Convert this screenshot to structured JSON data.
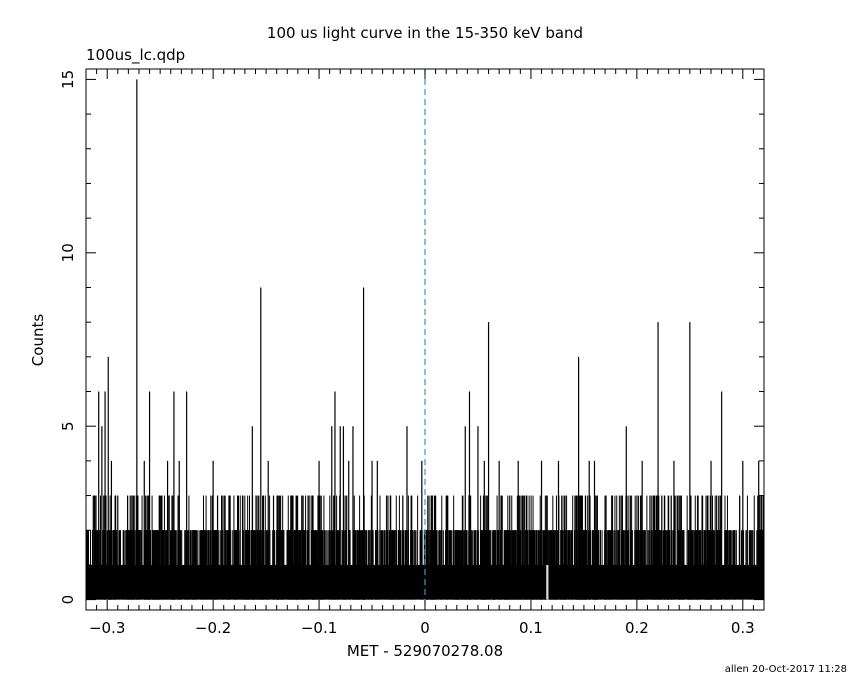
{
  "chart_data": {
    "type": "bar",
    "title": "100 us light curve in the 15-350 keV band",
    "file_label": "100us_lc.qdp",
    "xlabel": "MET - 529070278.08",
    "ylabel": "Counts",
    "footer": "allen 20-Oct-2017 11:28",
    "xlim": [
      -0.32,
      0.32
    ],
    "ylim": [
      -0.3,
      15.3
    ],
    "bin_width": 0.0001,
    "x_ticks": [
      -0.3,
      -0.2,
      -0.1,
      0,
      0.1,
      0.2,
      0.3
    ],
    "x_tick_labels": [
      "−0.3",
      "−0.2",
      "−0.1",
      "0",
      "0.1",
      "0.2",
      "0.3"
    ],
    "y_ticks": [
      0,
      5,
      10,
      15
    ],
    "y_tick_labels": [
      "0",
      "5",
      "10",
      "15"
    ],
    "trigger_line": {
      "x": 0,
      "style": "dashed",
      "color": "#2a9fc4"
    },
    "series": [
      {
        "background_level": 1,
        "peaks": [
          {
            "x": -0.308,
            "y": 6
          },
          {
            "x": -0.305,
            "y": 5
          },
          {
            "x": -0.302,
            "y": 6
          },
          {
            "x": -0.299,
            "y": 7
          },
          {
            "x": -0.296,
            "y": 4
          },
          {
            "x": -0.29,
            "y": 3
          },
          {
            "x": -0.272,
            "y": 15
          },
          {
            "x": -0.265,
            "y": 4
          },
          {
            "x": -0.26,
            "y": 6
          },
          {
            "x": -0.25,
            "y": 3
          },
          {
            "x": -0.243,
            "y": 4
          },
          {
            "x": -0.237,
            "y": 6
          },
          {
            "x": -0.232,
            "y": 4
          },
          {
            "x": -0.225,
            "y": 6
          },
          {
            "x": -0.2,
            "y": 4
          },
          {
            "x": -0.185,
            "y": 3
          },
          {
            "x": -0.163,
            "y": 5
          },
          {
            "x": -0.155,
            "y": 9
          },
          {
            "x": -0.148,
            "y": 4
          },
          {
            "x": -0.143,
            "y": 3
          },
          {
            "x": -0.125,
            "y": 3
          },
          {
            "x": -0.1,
            "y": 4
          },
          {
            "x": -0.098,
            "y": 3
          },
          {
            "x": -0.088,
            "y": 5
          },
          {
            "x": -0.085,
            "y": 6
          },
          {
            "x": -0.08,
            "y": 5
          },
          {
            "x": -0.077,
            "y": 5
          },
          {
            "x": -0.072,
            "y": 4
          },
          {
            "x": -0.068,
            "y": 5
          },
          {
            "x": -0.058,
            "y": 9
          },
          {
            "x": -0.05,
            "y": 4
          },
          {
            "x": -0.045,
            "y": 4
          },
          {
            "x": -0.035,
            "y": 3
          },
          {
            "x": -0.017,
            "y": 5
          },
          {
            "x": -0.003,
            "y": 4
          },
          {
            "x": 0.01,
            "y": 3
          },
          {
            "x": 0.038,
            "y": 5
          },
          {
            "x": 0.042,
            "y": 6
          },
          {
            "x": 0.05,
            "y": 5
          },
          {
            "x": 0.056,
            "y": 4
          },
          {
            "x": 0.06,
            "y": 8
          },
          {
            "x": 0.07,
            "y": 4
          },
          {
            "x": 0.08,
            "y": 3
          },
          {
            "x": 0.088,
            "y": 4
          },
          {
            "x": 0.11,
            "y": 4
          },
          {
            "x": 0.126,
            "y": 4
          },
          {
            "x": 0.145,
            "y": 7
          },
          {
            "x": 0.155,
            "y": 4
          },
          {
            "x": 0.16,
            "y": 4
          },
          {
            "x": 0.17,
            "y": 3
          },
          {
            "x": 0.19,
            "y": 5
          },
          {
            "x": 0.205,
            "y": 4
          },
          {
            "x": 0.22,
            "y": 8
          },
          {
            "x": 0.235,
            "y": 4
          },
          {
            "x": 0.25,
            "y": 8
          },
          {
            "x": 0.262,
            "y": 3
          },
          {
            "x": 0.27,
            "y": 4
          },
          {
            "x": 0.28,
            "y": 6
          },
          {
            "x": 0.3,
            "y": 4
          },
          {
            "x": 0.315,
            "y": 4
          }
        ]
      }
    ]
  }
}
